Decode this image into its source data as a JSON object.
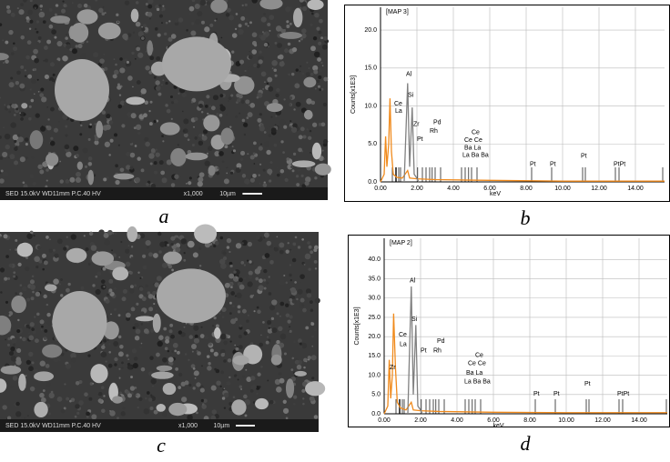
{
  "images": [
    {
      "caption": "a",
      "info": "SED 15.0kV WD11mm P.C.40 HV",
      "mag": "x1,000",
      "scale": "10µm"
    },
    {
      "caption": "c",
      "info": "SED 15.0kV WD11mm P.C.40 HV",
      "mag": "x1,000",
      "scale": "10µm"
    }
  ],
  "chart_data": [
    {
      "type": "spectrum",
      "caption": "b",
      "title": "[MAP 3]",
      "y_label": "Counts[x1E3]",
      "x_label": "keV",
      "xlim": [
        0,
        15.6
      ],
      "ylim": [
        0,
        23
      ],
      "xticks": [
        {
          "value": 0,
          "label": "0.00"
        },
        {
          "value": 2,
          "label": "2.00"
        },
        {
          "value": 4,
          "label": "4.00"
        },
        {
          "value": 6,
          "label": "6.00"
        },
        {
          "value": 8,
          "label": "8.00"
        },
        {
          "value": 10,
          "label": "10.00"
        },
        {
          "value": 12,
          "label": "12.00"
        },
        {
          "value": 14,
          "label": "14.00"
        }
      ],
      "yticks": [
        {
          "value": 0,
          "label": "0.0"
        },
        {
          "value": 5,
          "label": "5.0"
        },
        {
          "value": 10,
          "label": "10.0"
        },
        {
          "value": 15,
          "label": "15.0"
        },
        {
          "value": 20,
          "label": "20.0"
        }
      ],
      "grid": true,
      "series": [
        {
          "color": "#f08a1c",
          "x": [
            0,
            0.2,
            0.28,
            0.35,
            0.45,
            0.52,
            0.6,
            0.7,
            0.9,
            1.2,
            1.49,
            1.6,
            2,
            3,
            6,
            10,
            15.6
          ],
          "values": [
            0,
            1,
            6,
            2,
            5,
            11,
            4,
            1,
            0.6,
            0.5,
            1.5,
            0.5,
            0.4,
            0.3,
            0.2,
            0.1,
            0.1
          ]
        },
        {
          "color": "#808080",
          "x": [
            1.3,
            1.49,
            1.6,
            1.74,
            1.85,
            2.0,
            2.1
          ],
          "values": [
            0,
            13,
            2,
            9.8,
            1,
            0.5,
            0
          ]
        }
      ],
      "element_lines": [
        0.65,
        0.83,
        0.88,
        1.0,
        1.1,
        2.04,
        2.3,
        2.5,
        2.7,
        2.84,
        3.0,
        3.3,
        4.45,
        4.65,
        4.84,
        5.0,
        5.3,
        8.3,
        9.4,
        11.1,
        11.25,
        12.9,
        13.1,
        15.5
      ],
      "annotations": [
        {
          "text": "Al",
          "x": 1.4,
          "y": 14.2
        },
        {
          "text": "Si",
          "x": 1.5,
          "y": 11.4
        },
        {
          "text": "Ce",
          "x": 0.75,
          "y": 10.3
        },
        {
          "text": "La",
          "x": 0.8,
          "y": 9.3
        },
        {
          "text": "Zr",
          "x": 1.8,
          "y": 7.6
        },
        {
          "text": "Pd",
          "x": 2.9,
          "y": 7.8
        },
        {
          "text": "Rh",
          "x": 2.7,
          "y": 6.7
        },
        {
          "text": "Pt",
          "x": 2.0,
          "y": 5.6
        },
        {
          "text": "Ce",
          "x": 5.0,
          "y": 6.5
        },
        {
          "text": "Ce Ce",
          "x": 4.6,
          "y": 5.5
        },
        {
          "text": "Ba La",
          "x": 4.6,
          "y": 4.5
        },
        {
          "text": "La Ba Ba",
          "x": 4.5,
          "y": 3.5
        },
        {
          "text": "Pt",
          "x": 8.2,
          "y": 2.3
        },
        {
          "text": "Pt",
          "x": 9.3,
          "y": 2.3
        },
        {
          "text": "Pt",
          "x": 11.0,
          "y": 3.4
        },
        {
          "text": "PtPt",
          "x": 12.8,
          "y": 2.3
        }
      ]
    },
    {
      "type": "spectrum",
      "caption": "d",
      "title": "[MAP 2]",
      "y_label": "Counts[x1E3]",
      "x_label": "keV",
      "xlim": [
        0,
        15.55
      ],
      "ylim": [
        0,
        45.5
      ],
      "xticks": [
        {
          "value": 0,
          "label": "0.00"
        },
        {
          "value": 2,
          "label": "2.00"
        },
        {
          "value": 4,
          "label": "4.00"
        },
        {
          "value": 6,
          "label": "6.00"
        },
        {
          "value": 8,
          "label": "8.00"
        },
        {
          "value": 10,
          "label": "10.00"
        },
        {
          "value": 12,
          "label": "12.00"
        },
        {
          "value": 14,
          "label": "14.00"
        }
      ],
      "yticks": [
        {
          "value": 0,
          "label": "0.0"
        },
        {
          "value": 5,
          "label": "5.0"
        },
        {
          "value": 10,
          "label": "10.0"
        },
        {
          "value": 15,
          "label": "15.0"
        },
        {
          "value": 20,
          "label": "20.0"
        },
        {
          "value": 25,
          "label": "25.0"
        },
        {
          "value": 30,
          "label": "30.0"
        },
        {
          "value": 35,
          "label": "35.0"
        },
        {
          "value": 40,
          "label": "40.0"
        }
      ],
      "grid": true,
      "series": [
        {
          "color": "#f08a1c",
          "x": [
            0,
            0.2,
            0.28,
            0.36,
            0.45,
            0.52,
            0.62,
            0.72,
            0.9,
            1.2,
            1.49,
            1.6,
            2,
            3,
            6,
            10,
            15.55
          ],
          "values": [
            0,
            2,
            14,
            4,
            10,
            26,
            12,
            3,
            1.5,
            1,
            3,
            1,
            0.8,
            0.6,
            0.4,
            0.3,
            0.3
          ]
        },
        {
          "color": "#808080",
          "x": [
            1.3,
            1.49,
            1.6,
            1.74,
            1.85,
            2.0,
            2.1
          ],
          "values": [
            0,
            33,
            5,
            23,
            2,
            1,
            0
          ]
        }
      ],
      "element_lines": [
        0.65,
        0.83,
        0.88,
        1.0,
        1.1,
        2.04,
        2.3,
        2.5,
        2.7,
        2.84,
        3.0,
        3.3,
        4.45,
        4.65,
        4.84,
        5.0,
        5.3,
        8.3,
        9.4,
        11.1,
        11.25,
        12.9,
        13.1,
        15.5
      ],
      "annotations": [
        {
          "text": "Al",
          "x": 1.4,
          "y": 34.5
        },
        {
          "text": "Si",
          "x": 1.5,
          "y": 24.5
        },
        {
          "text": "Ce",
          "x": 0.8,
          "y": 20.5
        },
        {
          "text": "La",
          "x": 0.85,
          "y": 18
        },
        {
          "text": "Pd",
          "x": 2.9,
          "y": 18.8
        },
        {
          "text": "Rh",
          "x": 2.7,
          "y": 16.4
        },
        {
          "text": "Pt",
          "x": 2.0,
          "y": 16.4
        },
        {
          "text": "Zr",
          "x": 0.3,
          "y": 12
        },
        {
          "text": "Ce",
          "x": 5.0,
          "y": 15.2
        },
        {
          "text": "Ce Ce",
          "x": 4.6,
          "y": 13
        },
        {
          "text": "Ba La",
          "x": 4.5,
          "y": 10.6
        },
        {
          "text": "La Ba Ba",
          "x": 4.4,
          "y": 8.3
        },
        {
          "text": "Pt",
          "x": 8.2,
          "y": 5.2
        },
        {
          "text": "Pt",
          "x": 9.3,
          "y": 5.2
        },
        {
          "text": "Pt",
          "x": 11.0,
          "y": 7.8
        },
        {
          "text": "PtPt",
          "x": 12.8,
          "y": 5.2
        }
      ]
    }
  ]
}
